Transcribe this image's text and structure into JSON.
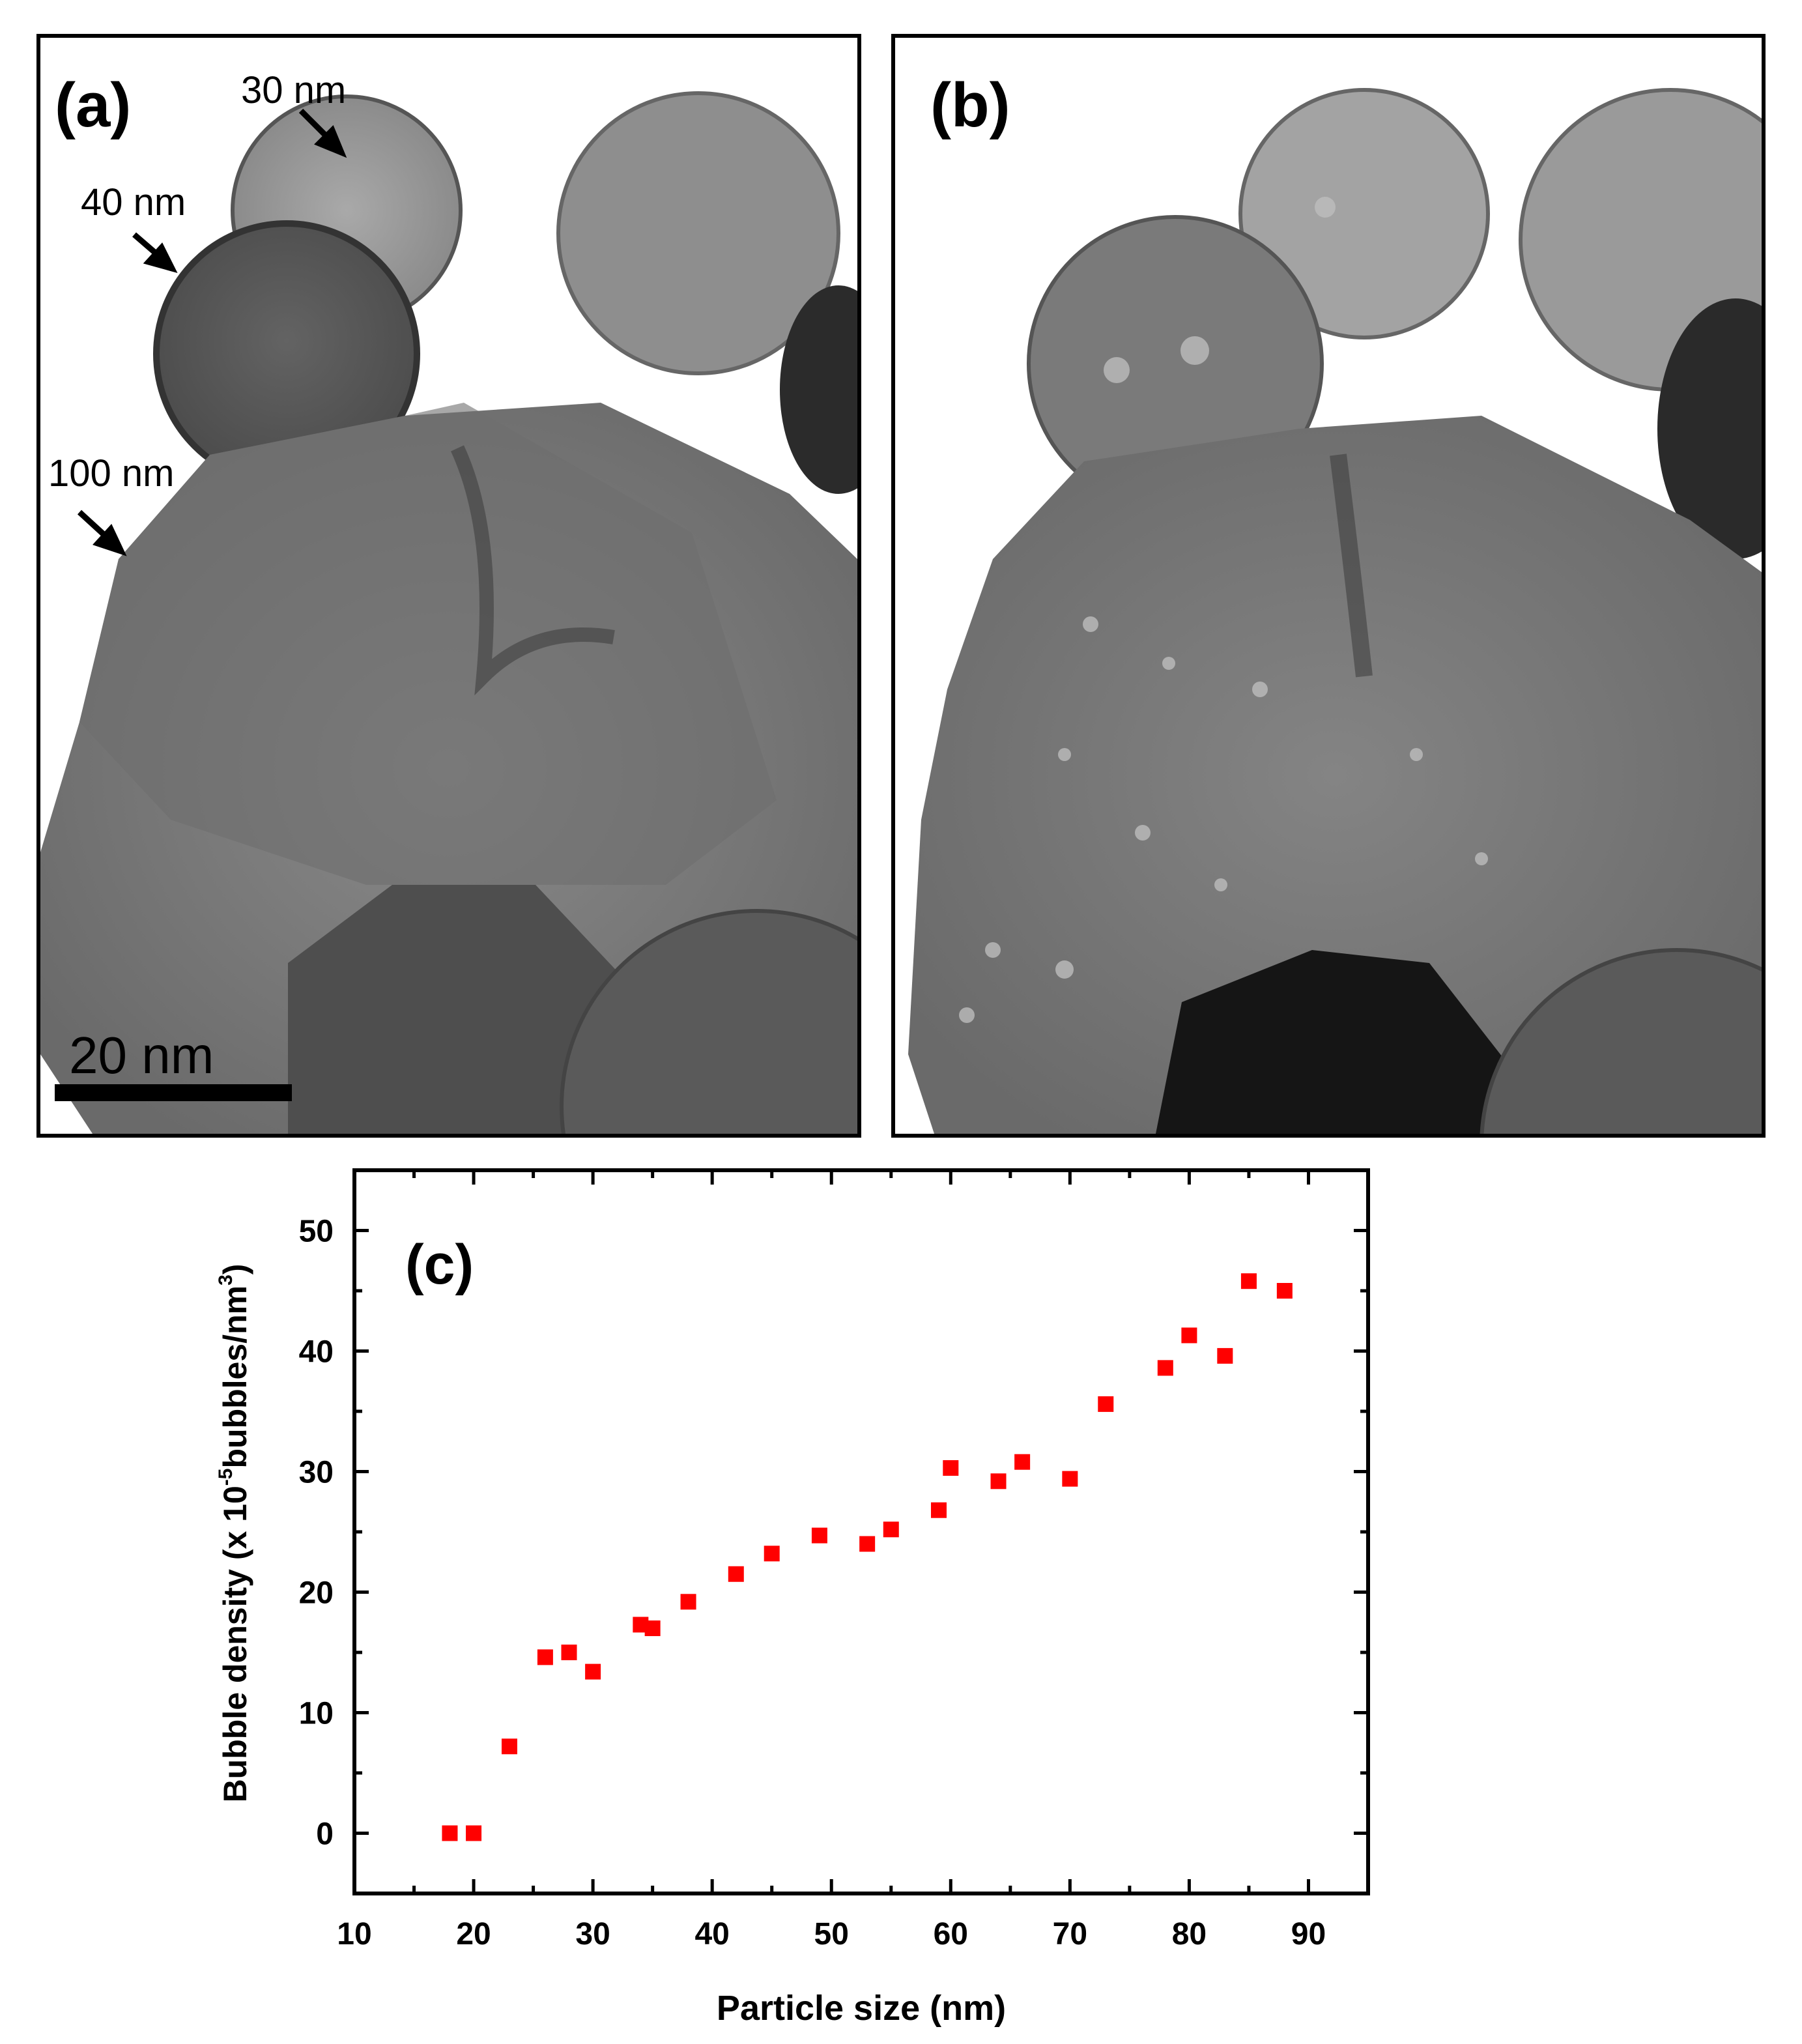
{
  "panel_a": {
    "label": "(a)",
    "annotations": [
      "30 nm",
      "40 nm",
      "100 nm"
    ],
    "scalebar_label": "20 nm"
  },
  "panel_b": {
    "label": "(b)"
  },
  "chart_data": {
    "type": "scatter",
    "panel_label": "(c)",
    "xlabel": "Particle size (nm)",
    "ylabel_main": "Bubble density (x 10",
    "ylabel_exp1": "-5",
    "ylabel_mid": "bubbles/nm",
    "ylabel_exp2": "3",
    "ylabel_end": ")",
    "xlim": [
      10,
      95
    ],
    "ylim": [
      -5,
      55
    ],
    "xticks": [
      10,
      20,
      30,
      40,
      50,
      60,
      70,
      80,
      90
    ],
    "yticks": [
      0,
      10,
      20,
      30,
      40,
      50
    ],
    "marker_color": "#ff0000",
    "series": [
      {
        "x": [
          18,
          20,
          23,
          26,
          28,
          30,
          34,
          35,
          38,
          42,
          45,
          49,
          53,
          55,
          59,
          60,
          64,
          66,
          70,
          73,
          78,
          80,
          83,
          85,
          88
        ],
        "y": [
          0,
          0,
          7.2,
          14.6,
          15,
          13.4,
          17.3,
          17,
          19.2,
          21.5,
          23.2,
          24.7,
          24,
          25.2,
          26.8,
          30.3,
          29.2,
          30.8,
          29.4,
          35.6,
          38.6,
          41.3,
          39.6,
          45.8,
          45
        ]
      }
    ]
  }
}
